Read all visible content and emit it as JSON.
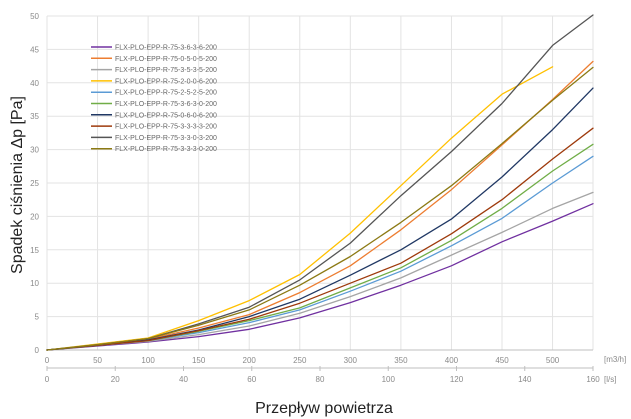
{
  "chart_data": {
    "type": "line",
    "ylabel": "Spadek ciśnienia Δp [Pa]",
    "xlabel": "Przepływ powietrza",
    "x_primary_unit": "[m3/h]",
    "x_secondary_unit": "[l/s]",
    "xlim": [
      0,
      540
    ],
    "ylim": [
      0,
      50
    ],
    "x_ticks": [
      0,
      50,
      100,
      150,
      200,
      250,
      300,
      350,
      400,
      450,
      500
    ],
    "x_secondary_ticks": [
      0,
      20,
      40,
      60,
      80,
      100,
      120,
      140,
      160
    ],
    "y_ticks": [
      0,
      5,
      10,
      15,
      20,
      25,
      30,
      35,
      40,
      45,
      50
    ],
    "grid": true,
    "legend_position": "top-left",
    "x": [
      0,
      50,
      100,
      150,
      200,
      250,
      300,
      350,
      400,
      450,
      500,
      540
    ],
    "series": [
      {
        "name": "FLX-PLO-EPP-R-75-3-6-3-6-200",
        "color": "#7030a0",
        "values": [
          0,
          0.6,
          1.2,
          2.0,
          3.1,
          4.8,
          7.1,
          9.7,
          12.6,
          16.2,
          19.3,
          21.9
        ]
      },
      {
        "name": "FLX-PLO-EPP-R-75-0-5-0-5-200",
        "color": "#ed7d31",
        "values": [
          0,
          0.7,
          1.6,
          3.3,
          5.3,
          8.6,
          12.6,
          18.0,
          24.0,
          30.7,
          37.5,
          43.2
        ]
      },
      {
        "name": "FLX-PLO-EPP-R-75-3-5-3-5-200",
        "color": "#a5a5a5",
        "values": [
          0,
          0.7,
          1.3,
          2.3,
          3.6,
          5.5,
          8.0,
          10.8,
          14.2,
          17.6,
          21.2,
          23.6
        ]
      },
      {
        "name": "FLX-PLO-EPP-R-75-2-0-0-6-200",
        "color": "#ffc000",
        "values": [
          0,
          0.9,
          1.8,
          4.4,
          7.4,
          11.3,
          17.5,
          24.6,
          31.7,
          38.3,
          42.4,
          null
        ]
      },
      {
        "name": "FLX-PLO-EPP-R-75-2-5-2-5-200",
        "color": "#5b9bd5",
        "values": [
          0,
          0.7,
          1.4,
          2.6,
          4.1,
          6.0,
          8.8,
          11.8,
          15.6,
          19.7,
          25.0,
          29.0
        ]
      },
      {
        "name": "FLX-PLO-EPP-R-75-3-6-3-0-200",
        "color": "#70ad47",
        "values": [
          0,
          0.7,
          1.4,
          2.8,
          4.4,
          6.3,
          9.3,
          12.3,
          16.4,
          21.2,
          26.8,
          30.8
        ]
      },
      {
        "name": "FLX-PLO-EPP-R-75-0-6-0-6-200",
        "color": "#203864",
        "values": [
          0,
          0.7,
          1.5,
          3.0,
          5.0,
          7.6,
          11.2,
          15.0,
          19.6,
          25.9,
          33.0,
          39.2
        ]
      },
      {
        "name": "FLX-PLO-EPP-R-75-3-3-3-3-200",
        "color": "#9e3a0c",
        "values": [
          0,
          0.7,
          1.4,
          2.9,
          4.6,
          7.0,
          10.0,
          13.0,
          17.4,
          22.5,
          28.6,
          33.2
        ]
      },
      {
        "name": "FLX-PLO-EPP-R-75-3-3-0-3-200",
        "color": "#555555",
        "values": [
          0,
          0.8,
          1.7,
          3.9,
          6.4,
          10.5,
          16.0,
          23.1,
          29.7,
          36.9,
          45.6,
          50.5
        ]
      },
      {
        "name": "FLX-PLO-EPP-R-75-3-3-3-0-200",
        "color": "#8c7a14",
        "values": [
          0,
          0.8,
          1.7,
          3.7,
          6.0,
          9.7,
          14.0,
          19.1,
          24.6,
          30.9,
          37.4,
          42.3
        ]
      }
    ]
  }
}
